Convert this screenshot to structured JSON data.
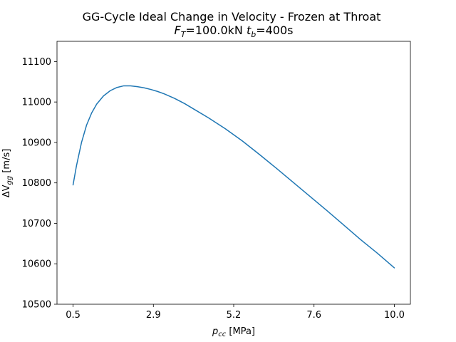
{
  "chart_data": {
    "type": "line",
    "title": "GG-Cycle Ideal Change in Velocity - Frozen at Throat",
    "subtitle": {
      "force_symbol": "F",
      "force_sub": "T",
      "force_value": "=100.0kN ",
      "time_symbol": "t",
      "time_sub": "b",
      "time_value": "=400s"
    },
    "xlabel": {
      "symbol": "p",
      "sub": "cc",
      "unit": " [MPa]"
    },
    "ylabel": {
      "symbol": "ΔV",
      "sub": "gg",
      "unit": " [m/s]"
    },
    "xlim": [
      0.025,
      10.475
    ],
    "ylim": [
      10500,
      11150
    ],
    "x_ticks": [
      0.5,
      2.875,
      5.25,
      7.625,
      10.0
    ],
    "x_tick_labels": [
      "0.5",
      "2.9",
      "5.2",
      "7.6",
      "10.0"
    ],
    "y_ticks": [
      10500,
      10600,
      10700,
      10800,
      10900,
      11000,
      11100
    ],
    "y_tick_labels": [
      "10500",
      "10600",
      "10700",
      "10800",
      "10900",
      "11000",
      "11100"
    ],
    "grid": false,
    "series": [
      {
        "color": "#1f77b4",
        "x": [
          0.5,
          0.6,
          0.75,
          0.9,
          1.05,
          1.2,
          1.4,
          1.6,
          1.8,
          2.0,
          2.2,
          2.4,
          2.6,
          2.8,
          3.0,
          3.2,
          3.5,
          3.8,
          4.1,
          4.5,
          5.0,
          5.5,
          6.0,
          6.5,
          7.0,
          7.5,
          8.0,
          8.5,
          9.0,
          9.5,
          10.0
        ],
        "y": [
          10795,
          10842,
          10900,
          10943,
          10973,
          10995,
          11015,
          11028,
          11036,
          11040,
          11040,
          11038,
          11035,
          11031,
          11026,
          11020,
          11009,
          10996,
          10981,
          10961,
          10934,
          10904,
          10871,
          10837,
          10802,
          10767,
          10732,
          10696,
          10660,
          10626,
          10590
        ]
      }
    ]
  }
}
